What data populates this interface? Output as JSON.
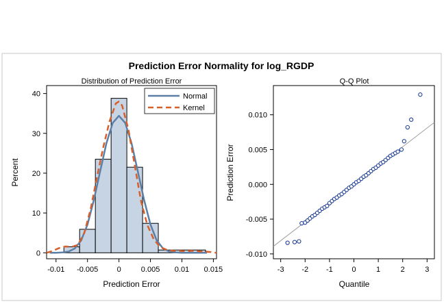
{
  "figure": {
    "title": "Prediction Error Normality for log_RGDP"
  },
  "chart_data": [
    {
      "type": "bar",
      "title": "Distribution of Prediction Error",
      "xlabel": "Prediction Error",
      "ylabel": "Percent",
      "xlim": [
        -0.0115,
        0.0155
      ],
      "ylim": [
        -1.5,
        42
      ],
      "xticks": [
        -0.01,
        -0.005,
        0,
        0.005,
        0.01,
        0.015
      ],
      "xtick_labels": [
        "-0.01",
        "-0.005",
        "0",
        "0.005",
        "0.01",
        "0.015"
      ],
      "yticks": [
        0,
        10,
        20,
        30,
        40
      ],
      "ytick_labels": [
        "0",
        "10",
        "20",
        "30",
        "40"
      ],
      "bin_width": 0.0025,
      "bins": [
        {
          "center": -0.0075,
          "value": 1.5
        },
        {
          "center": -0.005,
          "value": 5.9
        },
        {
          "center": -0.0025,
          "value": 23.5
        },
        {
          "center": 0.0,
          "value": 38.8
        },
        {
          "center": 0.0025,
          "value": 21.5
        },
        {
          "center": 0.005,
          "value": 7.4
        },
        {
          "center": 0.0075,
          "value": 0.7
        },
        {
          "center": 0.01,
          "value": 0.7
        },
        {
          "center": 0.0125,
          "value": 0.7
        }
      ],
      "series": [
        {
          "name": "Normal",
          "color": "#5b7fa6",
          "dash": "solid",
          "x": [
            -0.011,
            -0.01,
            -0.009,
            -0.008,
            -0.007,
            -0.006,
            -0.005,
            -0.004,
            -0.003,
            -0.002,
            -0.001,
            0.0,
            0.001,
            0.002,
            0.003,
            0.004,
            0.005,
            0.006,
            0.007,
            0.008,
            0.009,
            0.01,
            0.011,
            0.012,
            0.013,
            0.014
          ],
          "values": [
            0.0,
            0.0,
            0.1,
            0.3,
            1.1,
            3.1,
            7.1,
            13.2,
            20.4,
            27.5,
            32.6,
            34.4,
            32.6,
            27.5,
            20.4,
            13.2,
            7.1,
            3.1,
            1.1,
            0.3,
            0.1,
            0.0,
            0.0,
            0.0,
            0.0,
            0.0
          ]
        },
        {
          "name": "Kernel",
          "color": "#d65f2a",
          "dash": "dashed",
          "x": [
            -0.0115,
            -0.0105,
            -0.0095,
            -0.0085,
            -0.0075,
            -0.0065,
            -0.0055,
            -0.0045,
            -0.0035,
            -0.0025,
            -0.0015,
            -0.0005,
            0.0,
            0.0005,
            0.0015,
            0.0025,
            0.0035,
            0.0045,
            0.0055,
            0.0065,
            0.0075,
            0.0085,
            0.0095,
            0.0105,
            0.0115,
            0.0125,
            0.0135,
            0.0145,
            0.0155
          ],
          "values": [
            0.0,
            0.5,
            1.2,
            1.6,
            1.5,
            2.0,
            5.0,
            11.0,
            19.0,
            26.5,
            33.0,
            37.5,
            38.0,
            37.0,
            31.0,
            22.0,
            13.0,
            7.0,
            3.5,
            1.5,
            0.8,
            0.5,
            0.5,
            0.4,
            0.5,
            0.4,
            0.3,
            0.2,
            0.0
          ]
        }
      ],
      "legend": {
        "position": "top-right",
        "entries": [
          "Normal",
          "Kernel"
        ]
      },
      "bar_fill": "#c7d4e4",
      "bar_edge": "#000000"
    },
    {
      "type": "scatter",
      "title": "Q-Q Plot",
      "xlabel": "Quantile",
      "ylabel": "Prediction Error",
      "xlim": [
        -3.3,
        3.3
      ],
      "ylim": [
        -0.0107,
        0.0142
      ],
      "xticks": [
        -3,
        -2,
        -1,
        0,
        1,
        2,
        3
      ],
      "xtick_labels": [
        "-3",
        "-2",
        "-1",
        "0",
        "1",
        "2",
        "3"
      ],
      "yticks": [
        -0.01,
        -0.005,
        0.0,
        0.005,
        0.01
      ],
      "ytick_labels": [
        "-0.010",
        "-0.005",
        "0.000",
        "0.005",
        "0.010"
      ],
      "marker_color": "#1f3f95",
      "reference_line": {
        "intercept": 0.0,
        "slope": 0.0027,
        "color": "#a0a0a0"
      },
      "points": [
        [
          -2.72,
          -0.0084
        ],
        [
          -2.43,
          -0.0083
        ],
        [
          -2.25,
          -0.0082
        ],
        [
          -2.14,
          -0.0056
        ],
        [
          -2.0,
          -0.0055
        ],
        [
          -1.9,
          -0.0052
        ],
        [
          -1.8,
          -0.0049
        ],
        [
          -1.7,
          -0.0046
        ],
        [
          -1.6,
          -0.0044
        ],
        [
          -1.5,
          -0.0041
        ],
        [
          -1.4,
          -0.0038
        ],
        [
          -1.3,
          -0.0035
        ],
        [
          -1.2,
          -0.0033
        ],
        [
          -1.1,
          -0.0031
        ],
        [
          -1.0,
          -0.0027
        ],
        [
          -0.9,
          -0.0024
        ],
        [
          -0.8,
          -0.0021
        ],
        [
          -0.7,
          -0.0019
        ],
        [
          -0.6,
          -0.0016
        ],
        [
          -0.5,
          -0.0014
        ],
        [
          -0.4,
          -0.0011
        ],
        [
          -0.3,
          -0.0008
        ],
        [
          -0.2,
          -0.0005
        ],
        [
          -0.1,
          -0.0003
        ],
        [
          0.0,
          0.0
        ],
        [
          0.1,
          0.0003
        ],
        [
          0.2,
          0.0005
        ],
        [
          0.3,
          0.0008
        ],
        [
          0.4,
          0.0011
        ],
        [
          0.5,
          0.0013
        ],
        [
          0.6,
          0.0016
        ],
        [
          0.7,
          0.0019
        ],
        [
          0.8,
          0.0022
        ],
        [
          0.9,
          0.0024
        ],
        [
          1.0,
          0.0027
        ],
        [
          1.1,
          0.003
        ],
        [
          1.2,
          0.0032
        ],
        [
          1.3,
          0.0035
        ],
        [
          1.4,
          0.0038
        ],
        [
          1.5,
          0.0041
        ],
        [
          1.6,
          0.0043
        ],
        [
          1.7,
          0.0045
        ],
        [
          1.8,
          0.0047
        ],
        [
          1.95,
          0.005
        ],
        [
          2.06,
          0.0062
        ],
        [
          2.2,
          0.0082
        ],
        [
          2.35,
          0.0093
        ],
        [
          2.72,
          0.0129
        ]
      ]
    }
  ]
}
